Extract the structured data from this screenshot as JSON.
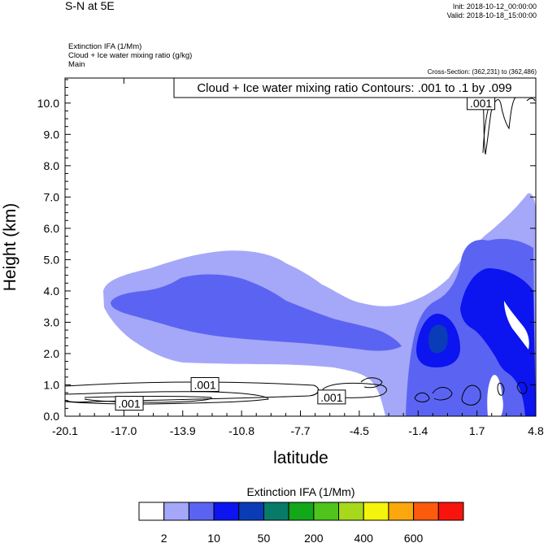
{
  "header": {
    "title": "S-N at 5E",
    "init": "Init: 2018-10-12_00:00:00",
    "valid": "Valid: 2018-10-18_15:00:00",
    "field1": "Extinction IFA   (1/Mm)",
    "field2": "Cloud + Ice water mixing ratio   (g/kg)",
    "field3": "Main",
    "cross_section": "Cross-Section: (362,231) to (362,486)"
  },
  "chart_data": {
    "type": "heatmap",
    "title": "S-N at 5E",
    "xlabel": "latitude",
    "ylabel": "Height (km)",
    "x_ticks": [
      "-20.1",
      "-17.0",
      "-13.9",
      "-10.8",
      "-7.7",
      "-4.5",
      "-1.4",
      "1.7",
      "4.8"
    ],
    "xlim": [
      -20.1,
      4.8
    ],
    "y_ticks": [
      "0.0",
      "1.0",
      "2.0",
      "3.0",
      "4.0",
      "5.0",
      "6.0",
      "7.0",
      "8.0",
      "9.0",
      "10.0"
    ],
    "ylim": [
      0,
      10.8
    ],
    "contour_info": "Cloud + Ice water mixing ratio Contours: .001 to .1 by .099",
    "contour_labels": [
      {
        "text": ".001",
        "lat": -16.7,
        "h": 0.4
      },
      {
        "text": ".001",
        "lat": -12.7,
        "h": 1.0
      },
      {
        "text": ".001",
        "lat": -6.0,
        "h": 0.6
      },
      {
        "text": ".001",
        "lat": 1.9,
        "h": 10.0
      }
    ],
    "colorbar": {
      "title": "Extinction IFA  (1/Mm)",
      "colors": [
        "#ffffff",
        "#a5a8f8",
        "#5b64f2",
        "#0c14f0",
        "#0a3cb8",
        "#087a68",
        "#12a81a",
        "#4ec41c",
        "#a8d81c",
        "#f4f40c",
        "#fca80c",
        "#fc5a0c",
        "#f8140c"
      ],
      "tick_labels": [
        "2",
        "10",
        "50",
        "200",
        "400",
        "600"
      ]
    }
  }
}
